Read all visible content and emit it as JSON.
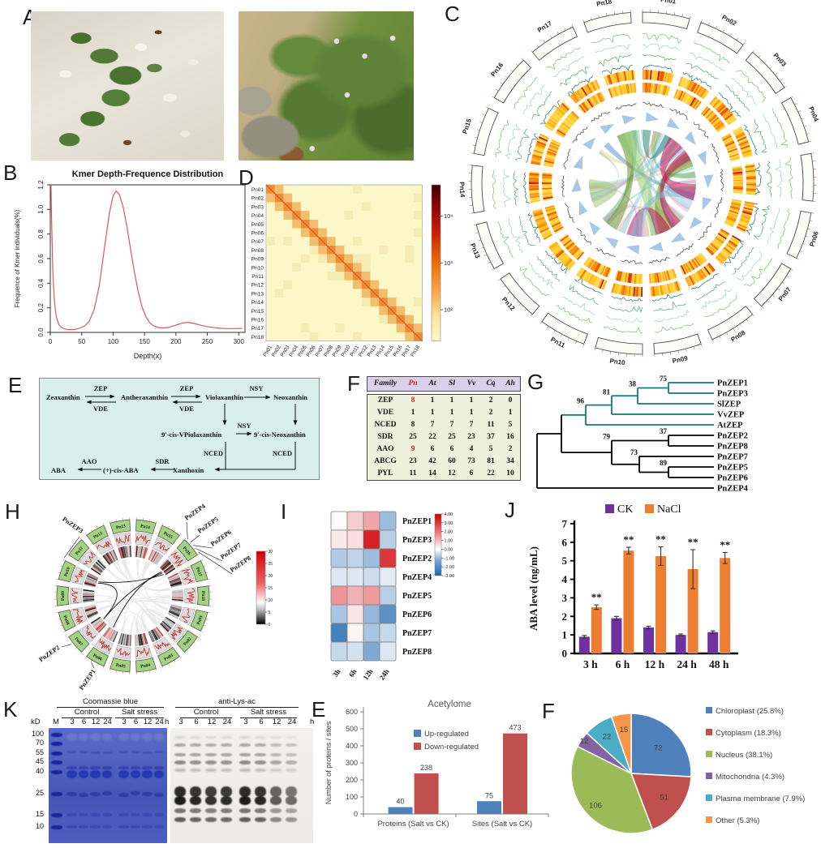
{
  "chromosomes": [
    "Pn01",
    "Pn02",
    "Pn03",
    "Pn04",
    "Pn05",
    "Pn06",
    "Pn07",
    "Pn08",
    "Pn09",
    "Pn10",
    "Pn11",
    "Pn12",
    "Pn13",
    "Pn14",
    "Pn15",
    "Pn16",
    "Pn17",
    "Pn18"
  ],
  "panels": {
    "A": {
      "label": "A",
      "photo1_alt": "creeping pioneer plant on white coral sand",
      "photo2_alt": "green shrub with small white flowers on sandy ground"
    },
    "B": {
      "label": "B"
    },
    "C": {
      "label": "C"
    },
    "D": {
      "label": "D"
    },
    "E": {
      "label": "E"
    },
    "F": {
      "label": "F"
    },
    "G": {
      "label": "G"
    },
    "H": {
      "label": "H"
    },
    "I": {
      "label": "I"
    },
    "J": {
      "label": "J"
    },
    "K": {
      "label": "K"
    },
    "E2": {
      "label": "E"
    },
    "F2": {
      "label": "F"
    }
  },
  "chart_data": [
    {
      "panel": "B",
      "type": "line",
      "title": "Kmer Depth-Frequence Distribution",
      "xlabel": "Depth(x)",
      "ylabel": "Frequence of Kmer individuals(%)",
      "xlim": [
        0,
        310
      ],
      "ylim": [
        0,
        1.2
      ],
      "xticks": [
        0,
        50,
        100,
        150,
        200,
        250,
        300
      ],
      "yticks": [
        0,
        0.2,
        0.4,
        0.6,
        0.8,
        1,
        1.2
      ],
      "line_color": "#e25555",
      "points": [
        [
          1,
          1.22
        ],
        [
          2,
          0.95
        ],
        [
          4,
          0.5
        ],
        [
          6,
          0.3
        ],
        [
          8,
          0.18
        ],
        [
          10,
          0.12
        ],
        [
          14,
          0.06
        ],
        [
          18,
          0.04
        ],
        [
          24,
          0.026
        ],
        [
          30,
          0.022
        ],
        [
          38,
          0.024
        ],
        [
          46,
          0.032
        ],
        [
          54,
          0.05
        ],
        [
          62,
          0.09
        ],
        [
          70,
          0.19
        ],
        [
          78,
          0.38
        ],
        [
          86,
          0.68
        ],
        [
          94,
          0.97
        ],
        [
          100,
          1.11
        ],
        [
          105,
          1.15
        ],
        [
          110,
          1.12
        ],
        [
          116,
          1.02
        ],
        [
          122,
          0.86
        ],
        [
          128,
          0.67
        ],
        [
          134,
          0.49
        ],
        [
          140,
          0.33
        ],
        [
          146,
          0.21
        ],
        [
          152,
          0.13
        ],
        [
          158,
          0.08
        ],
        [
          164,
          0.055
        ],
        [
          172,
          0.04
        ],
        [
          180,
          0.036
        ],
        [
          188,
          0.04
        ],
        [
          196,
          0.052
        ],
        [
          204,
          0.066
        ],
        [
          212,
          0.078
        ],
        [
          218,
          0.082
        ],
        [
          226,
          0.076
        ],
        [
          234,
          0.066
        ],
        [
          242,
          0.055
        ],
        [
          252,
          0.045
        ],
        [
          262,
          0.038
        ],
        [
          272,
          0.033
        ],
        [
          282,
          0.031
        ],
        [
          292,
          0.031
        ],
        [
          305,
          0.032
        ]
      ]
    },
    {
      "panel": "C",
      "type": "circos",
      "description": "Genome circos of 18 chromosomes: gene-density line tracks (greens), repeat-density heatmap rings (yellow-orange), GC arcs and inner synteny ribbons",
      "track_line_colors": [
        "#74c069",
        "#8fd7c0",
        "#47ab63",
        "#19745c"
      ]
    },
    {
      "panel": "D",
      "type": "heatmap",
      "description": "Hi-C chromatin interaction matrix, diagonal-dominant",
      "colorbar_ticks": [
        "10⁴",
        "10³",
        "10²"
      ]
    },
    {
      "panel": "E",
      "type": "pathway",
      "background": "#d9efe9",
      "nodes": [
        "Zeaxanthin",
        "Antheraxanthin",
        "Violaxanthin",
        "Neoxanthin",
        "9'-cis-VPiolaxanthin",
        "9'-cis-Neoxanthin",
        "Xanthoxin",
        "(+)-cis-ABA",
        "ABA"
      ],
      "enzymes": [
        "ZEP",
        "VDE",
        "NSY",
        "NCED",
        "SDR",
        "AAO"
      ]
    },
    {
      "panel": "F",
      "type": "table",
      "headers": [
        "Family",
        "Pn",
        "At",
        "Sl",
        "Vv",
        "Cq",
        "Ah"
      ],
      "red_header_index": 1,
      "rows": [
        [
          "ZEP",
          "8",
          "1",
          "1",
          "1",
          "2",
          "0"
        ],
        [
          "VDE",
          "1",
          "1",
          "1",
          "1",
          "2",
          "1"
        ],
        [
          "NCED",
          "8",
          "7",
          "7",
          "7",
          "11",
          "5"
        ],
        [
          "SDR",
          "25",
          "22",
          "25",
          "23",
          "37",
          "16"
        ],
        [
          "AAO",
          "9",
          "6",
          "6",
          "4",
          "5",
          "2"
        ],
        [
          "ABCG",
          "23",
          "42",
          "60",
          "73",
          "81",
          "34"
        ],
        [
          "PYL",
          "11",
          "14",
          "12",
          "6",
          "22",
          "10"
        ]
      ],
      "red_cells": [
        [
          0,
          1
        ],
        [
          4,
          1
        ]
      ]
    },
    {
      "panel": "G",
      "type": "tree",
      "leaves": [
        "PnZEP1",
        "PnZEP3",
        "SlZEP",
        "VvZEP",
        "AtZEP",
        "PnZEP2",
        "PnZEP8",
        "PnZEP7",
        "PnZEP5",
        "PnZEP6",
        "PnZEP4"
      ],
      "bootstrap_values": [
        75,
        38,
        81,
        96,
        37,
        79,
        73,
        89
      ],
      "clade_color": "#137a77"
    },
    {
      "panel": "H",
      "type": "circos",
      "chromosome_order": [
        "Pn11",
        "Pn12",
        "Pn13",
        "Pn14",
        "Pn15",
        "Pn16",
        "Pn17",
        "Pn18",
        "Pn01",
        "Pn02",
        "Pn03",
        "Pn04",
        "Pn05",
        "Pn06",
        "Pn07",
        "Pn08",
        "Pn09",
        "Pn10"
      ],
      "gene_labels": [
        "PnZEP1",
        "PnZEP2",
        "PnZEP3",
        "PnZEP4",
        "PnZEP5",
        "PnZEP6",
        "PnZEP7",
        "PnZEP8"
      ],
      "colorbar": {
        "max": 30,
        "min": 0,
        "ticks": [
          30,
          25,
          20,
          15,
          10,
          5,
          0
        ]
      }
    },
    {
      "panel": "I",
      "type": "heatmap",
      "rows": [
        "PnZEP1",
        "PnZEP3",
        "PnZEP2",
        "PnZEP4",
        "PnZEP5",
        "PnZEP6",
        "PnZEP7",
        "PnZEP8"
      ],
      "columns": [
        "3h",
        "6h",
        "12h",
        "24h"
      ],
      "values": [
        [
          0.1,
          0.9,
          1.6,
          -1.4
        ],
        [
          0.4,
          0.6,
          4,
          -1
        ],
        [
          -1.1,
          -0.9,
          -1.4,
          3.6
        ],
        [
          -0.5,
          -0.5,
          -0.7,
          -0.4
        ],
        [
          1.9,
          1.4,
          1.8,
          -1
        ],
        [
          -1.2,
          0.5,
          -1.5,
          -2.3
        ],
        [
          -2.6,
          0.2,
          -1.2,
          -0.8
        ],
        [
          -0.8,
          -0.6,
          -1.8,
          -0.5
        ]
      ],
      "colorbar_ticks": [
        "4.00",
        "3.00",
        "2.00",
        "1.00",
        "0.00",
        "-1.00",
        "-2.00",
        "-3.00"
      ],
      "scale": [
        4,
        -3
      ]
    },
    {
      "panel": "J",
      "type": "bar",
      "ylabel": "ABA level (ng/mL)",
      "ylim": [
        0,
        7
      ],
      "yticks": [
        0,
        1,
        2,
        3,
        4,
        5,
        6,
        7
      ],
      "categories": [
        "3 h",
        "6 h",
        "12 h",
        "24 h",
        "48 h"
      ],
      "series": [
        {
          "name": "CK",
          "color": "#7030a0",
          "values": [
            0.9,
            1.9,
            1.4,
            1,
            1.15
          ],
          "errors": [
            0.07,
            0.1,
            0.07,
            0.05,
            0.07
          ]
        },
        {
          "name": "NaCl",
          "color": "#ed7d31",
          "values": [
            2.5,
            5.55,
            5.25,
            4.55,
            5.15
          ],
          "errors": [
            0.12,
            0.18,
            0.5,
            1.05,
            0.3
          ]
        }
      ],
      "significance": [
        "**",
        "**",
        "**",
        "**",
        "**"
      ]
    },
    {
      "panel": "K",
      "type": "gel",
      "kd_label": "kD",
      "marker_label": "M",
      "unit_label": "h",
      "ladder": [
        100,
        70,
        55,
        45,
        40,
        25,
        15,
        10
      ],
      "blots": [
        {
          "title": "Coomassie blue",
          "groups": [
            "Control",
            "Salt stress"
          ]
        },
        {
          "title": "anti-Lys-ac",
          "groups": [
            "Control",
            "Salt stress"
          ]
        }
      ],
      "timepoints": [
        "3",
        "6",
        "12",
        "24"
      ]
    },
    {
      "panel": "E2",
      "type": "bar",
      "title": "Acetylome",
      "ylabel": "Number of proteins / sites",
      "ylim": [
        0,
        600
      ],
      "yticks": [
        0,
        100,
        200,
        300,
        400,
        500,
        600
      ],
      "categories": [
        "Proteins (Salt vs CK)",
        "Sites (Salt vs CK)"
      ],
      "series": [
        {
          "name": "Up-regulated",
          "color": "#4f81bd",
          "values": [
            40,
            75
          ]
        },
        {
          "name": "Down-regulated",
          "color": "#c0504d",
          "values": [
            238,
            473
          ]
        }
      ]
    },
    {
      "panel": "F2",
      "type": "pie",
      "slices": [
        {
          "label": "Chloroplast (25.8%)",
          "value": 72,
          "pct": 25.8,
          "color": "#4f81bd"
        },
        {
          "label": "Cytoplasm (18.3%)",
          "value": 51,
          "pct": 18.3,
          "color": "#c0504d"
        },
        {
          "label": "Nucleus (38.1%)",
          "value": 106,
          "pct": 38.1,
          "color": "#9bbb59"
        },
        {
          "label": "Mitochondria (4.3%)",
          "value": 12,
          "pct": 4.3,
          "color": "#8064a2"
        },
        {
          "label": "Plasma membrane (7.9%)",
          "value": 22,
          "pct": 7.9,
          "color": "#4bacc6"
        },
        {
          "label": "Other (5.3%)",
          "value": 15,
          "pct": 5.3,
          "color": "#f79646"
        }
      ]
    }
  ]
}
